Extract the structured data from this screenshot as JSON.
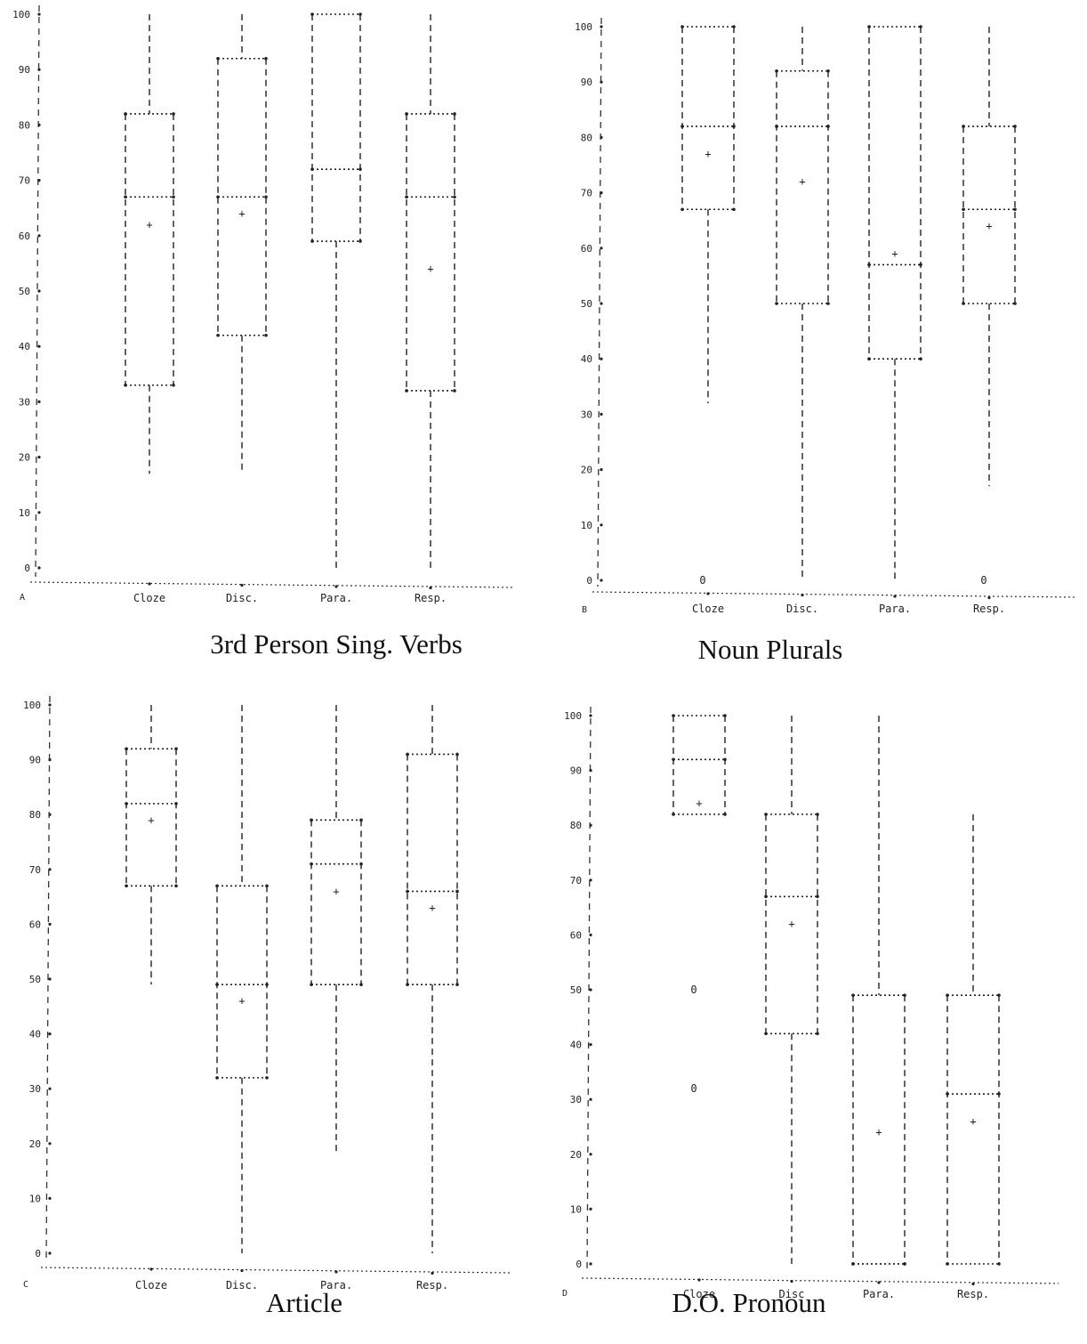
{
  "chart_data": [
    {
      "panel": "A",
      "caption": "3rd Person Sing. Verbs",
      "type": "box",
      "yticks": [
        0,
        10,
        20,
        30,
        40,
        50,
        60,
        70,
        80,
        90,
        100
      ],
      "ylim": [
        0,
        100
      ],
      "categories": [
        "Cloze",
        "Disc.",
        "Para.",
        "Resp."
      ],
      "boxes": [
        {
          "min": 17,
          "q1": 33,
          "median": 67,
          "q3": 82,
          "max": 100,
          "mean": 62,
          "outliers": []
        },
        {
          "min": 17,
          "q1": 42,
          "median": 67,
          "q3": 92,
          "max": 100,
          "mean": 64,
          "outliers": []
        },
        {
          "min": 0,
          "q1": 59,
          "median": 72,
          "q3": 100,
          "max": 100,
          "mean": null,
          "outliers": []
        },
        {
          "min": 0,
          "q1": 32,
          "median": 67,
          "q3": 82,
          "max": 100,
          "mean": 54,
          "outliers": []
        }
      ]
    },
    {
      "panel": "B",
      "caption": "Noun Plurals",
      "type": "box",
      "yticks": [
        0,
        10,
        20,
        30,
        40,
        50,
        60,
        70,
        80,
        90,
        100
      ],
      "ylim": [
        0,
        100
      ],
      "categories": [
        "Cloze",
        "Disc.",
        "Para.",
        "Resp."
      ],
      "boxes": [
        {
          "min": 32,
          "q1": 67,
          "median": 82,
          "q3": 100,
          "max": 100,
          "mean": 77,
          "outliers": [
            0
          ]
        },
        {
          "min": 0,
          "q1": 50,
          "median": 82,
          "q3": 92,
          "max": 100,
          "mean": 72,
          "outliers": []
        },
        {
          "min": 0,
          "q1": 40,
          "median": 57,
          "q3": 100,
          "max": 100,
          "mean": 59,
          "outliers": []
        },
        {
          "min": 17,
          "q1": 50,
          "median": 67,
          "q3": 82,
          "max": 100,
          "mean": 64,
          "outliers": [
            0
          ]
        }
      ]
    },
    {
      "panel": "C",
      "caption": "Article",
      "type": "box",
      "yticks": [
        0,
        10,
        20,
        30,
        40,
        50,
        60,
        70,
        80,
        90,
        100
      ],
      "ylim": [
        0,
        100
      ],
      "categories": [
        "Cloze",
        "Disc.",
        "Para.",
        "Resp."
      ],
      "boxes": [
        {
          "min": 49,
          "q1": 67,
          "median": 82,
          "q3": 92,
          "max": 100,
          "mean": 79,
          "outliers": []
        },
        {
          "min": 0,
          "q1": 32,
          "median": 49,
          "q3": 67,
          "max": 100,
          "mean": 46,
          "outliers": []
        },
        {
          "min": 18,
          "q1": 49,
          "median": 71,
          "q3": 79,
          "max": 100,
          "mean": 66,
          "outliers": []
        },
        {
          "min": 0,
          "q1": 49,
          "median": 66,
          "q3": 91,
          "max": 100,
          "mean": 63,
          "outliers": []
        }
      ]
    },
    {
      "panel": "D",
      "caption": "D.O. Pronoun",
      "type": "box",
      "yticks": [
        0,
        10,
        20,
        30,
        40,
        50,
        60,
        70,
        80,
        90,
        100
      ],
      "ylim": [
        0,
        100
      ],
      "categories": [
        "Cloze",
        "Disc",
        "Para.",
        "Resp."
      ],
      "boxes": [
        {
          "min": 82,
          "q1": 82,
          "median": 92,
          "q3": 100,
          "max": 100,
          "mean": 84,
          "outliers": [
            50,
            32
          ]
        },
        {
          "min": 0,
          "q1": 42,
          "median": 67,
          "q3": 82,
          "max": 100,
          "mean": 62,
          "outliers": []
        },
        {
          "min": 0,
          "q1": 0,
          "median": 0,
          "q3": 49,
          "max": 100,
          "mean": 24,
          "outliers": []
        },
        {
          "min": 0,
          "q1": 0,
          "median": 31,
          "q3": 49,
          "max": 82,
          "mean": 26,
          "outliers": []
        }
      ]
    }
  ],
  "outlier_symbol": "0"
}
